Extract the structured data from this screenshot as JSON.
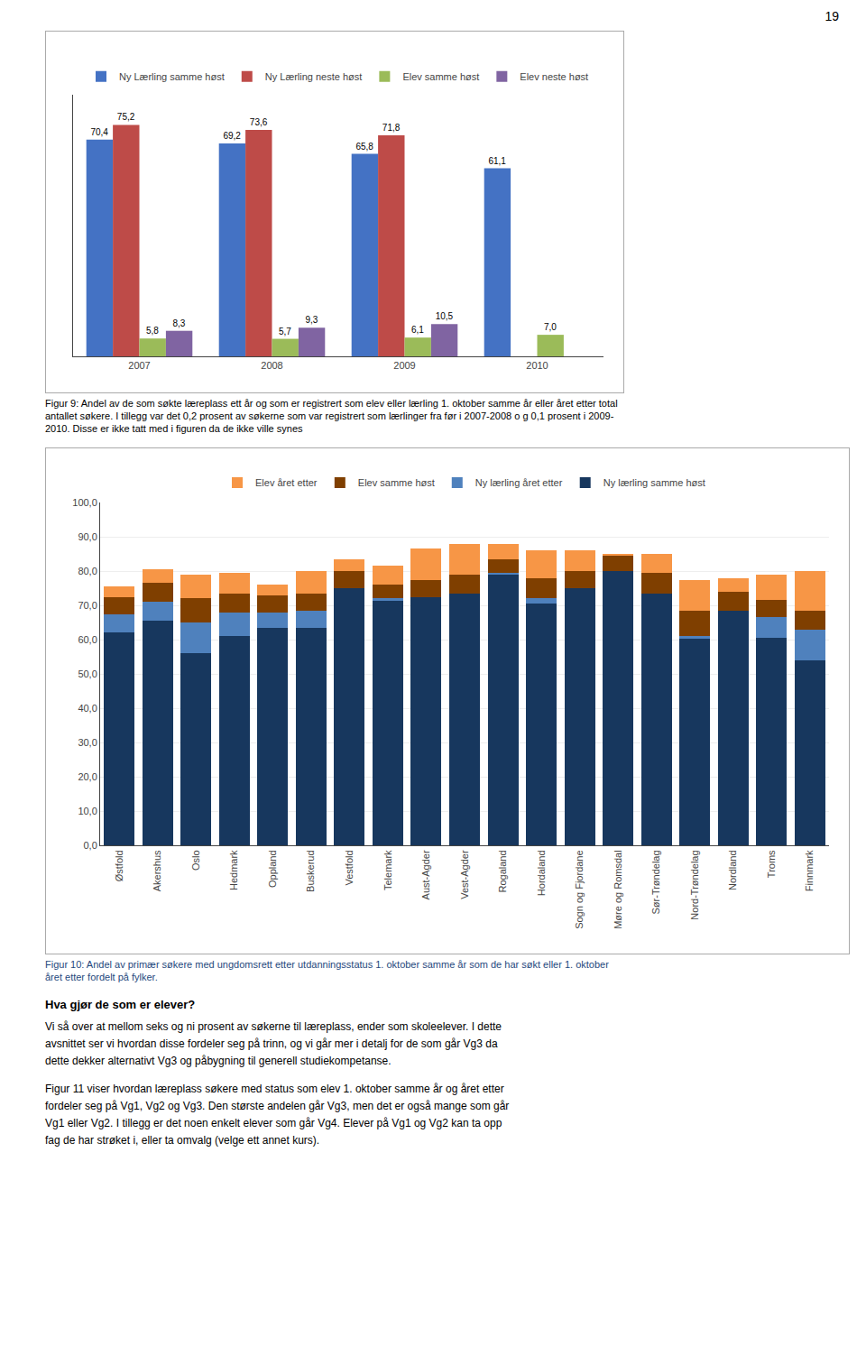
{
  "page_number": "19",
  "chart_data": [
    {
      "type": "bar",
      "categories": [
        "2007",
        "2008",
        "2009",
        "2010"
      ],
      "series": [
        {
          "name": "Ny Lærling samme høst",
          "color": "#4472C4",
          "values": [
            70.4,
            69.2,
            65.8,
            61.1
          ],
          "value_labels": [
            "70,4",
            "69,2",
            "65,8",
            "61,1"
          ]
        },
        {
          "name": "Ny Lærling neste høst",
          "color": "#BE4B48",
          "values": [
            75.2,
            73.6,
            71.8,
            null
          ],
          "value_labels": [
            "75,2",
            "73,6",
            "71,8",
            null
          ]
        },
        {
          "name": "Elev samme høst",
          "color": "#9BBB59",
          "values": [
            5.8,
            5.7,
            6.1,
            7.0
          ],
          "value_labels": [
            "5,8",
            "5,7",
            "6,1",
            "7,0"
          ]
        },
        {
          "name": "Elev neste høst",
          "color": "#8064A2",
          "values": [
            8.3,
            9.3,
            10.5,
            null
          ],
          "value_labels": [
            "8,3",
            "9,3",
            "10,5",
            null
          ]
        }
      ],
      "ylim": [
        0,
        85
      ],
      "data_labels": true,
      "tick_labels": "x",
      "grid": false,
      "legend": "top",
      "annotations": [
        "Figur 9: Andel av de som søkte læreplass ett år og som er registrert som elev eller lærling 1. oktober samme år eller året etter total",
        "antallet søkere.  I tillegg var det 0,2 prosent av søkerne som var registrert som lærlinger fra før i 2007-2008 o g 0,1 prosent i 2009-",
        "2010. Disse er ikke tatt med i figuren da de ikke ville synes"
      ]
    },
    {
      "type": "bar",
      "stacked": true,
      "categories": [
        "Østfold",
        "Akershus",
        "Oslo",
        "Hedmark",
        "Oppland",
        "Buskerud",
        "Vestfold",
        "Telemark",
        "Aust-Agder",
        "Vest-Agder",
        "Rogaland",
        "Hordaland",
        "Sogn og Fjordane",
        "Møre og Romsdal",
        "Sør-Trøndelag",
        "Nord-Trøndelag",
        "Nordland",
        "Troms",
        "Finnmark"
      ],
      "series": [
        {
          "name": "Ny lærling samme høst",
          "color": "#17375E",
          "values": [
            62.0,
            65.5,
            56.0,
            61.0,
            63.5,
            63.5,
            75.0,
            71.5,
            72.5,
            73.5,
            79.0,
            70.5,
            75.0,
            80.0,
            73.5,
            60.5,
            68.5,
            60.5,
            54.0
          ]
        },
        {
          "name": "Ny lærling året etter",
          "color": "#4F81BD",
          "values": [
            5.5,
            5.5,
            9.0,
            7.0,
            4.5,
            5.0,
            0.0,
            0.5,
            0.0,
            0.0,
            0.5,
            1.5,
            0.0,
            0.0,
            0.0,
            0.5,
            0.0,
            6.0,
            9.0
          ]
        },
        {
          "name": "Elev samme høst",
          "color": "#7F3F00",
          "values": [
            5.0,
            5.5,
            7.0,
            5.5,
            5.0,
            5.0,
            5.0,
            4.0,
            5.0,
            5.5,
            4.0,
            6.0,
            5.0,
            4.5,
            6.0,
            7.5,
            5.5,
            5.0,
            5.5
          ]
        },
        {
          "name": "Elev året etter",
          "color": "#F79646",
          "values": [
            3.0,
            4.0,
            7.0,
            6.0,
            3.0,
            6.5,
            3.5,
            5.5,
            9.0,
            9.0,
            4.5,
            8.0,
            6.0,
            0.5,
            5.5,
            9.0,
            4.0,
            7.5,
            11.5
          ]
        }
      ],
      "ylim": [
        0,
        100
      ],
      "yticks": [
        {
          "value": 0.0,
          "label": "0,0"
        },
        {
          "value": 10.0,
          "label": "10,0"
        },
        {
          "value": 20.0,
          "label": "20,0"
        },
        {
          "value": 30.0,
          "label": "30,0"
        },
        {
          "value": 40.0,
          "label": "40,0"
        },
        {
          "value": 50.0,
          "label": "50,0"
        },
        {
          "value": 60.0,
          "label": "60,0"
        },
        {
          "value": 70.0,
          "label": "70,0"
        },
        {
          "value": 80.0,
          "label": "80,0"
        },
        {
          "value": 90.0,
          "label": "90,0"
        },
        {
          "value": 100.0,
          "label": "100,0"
        }
      ],
      "grid": true,
      "legend": "top",
      "annotations": [
        "Figur 10: Andel av primær søkere med ungdomsrett etter utdanningsstatus 1. oktober samme år som de har søkt eller 1. oktober\nåret etter fordelt på fylker."
      ]
    }
  ],
  "heading": "Hva gjør de som er elever?",
  "paragraphs": [
    [
      "Vi så over at mellom seks og ni prosent av søkerne til læreplass, ender som skoleelever. I dette",
      "avsnittet ser vi hvordan disse fordeler seg på trinn, og vi går mer i detalj for de som går Vg3 da",
      "dette dekker alternativt Vg3 og påbygning til generell studiekompetanse."
    ],
    [
      "Figur 11 viser hvordan læreplass søkere med status som elev 1. oktober samme år og året etter",
      "fordeler seg på Vg1, Vg2 og Vg3. Den største andelen går Vg3, men det er også mange som går",
      "Vg1 eller Vg2. I tillegg er det noen enkelt elever som går Vg4. Elever på Vg1 og Vg2 kan ta opp",
      "fag de har strøket i, eller ta omvalg (velge ett annet kurs)."
    ]
  ]
}
